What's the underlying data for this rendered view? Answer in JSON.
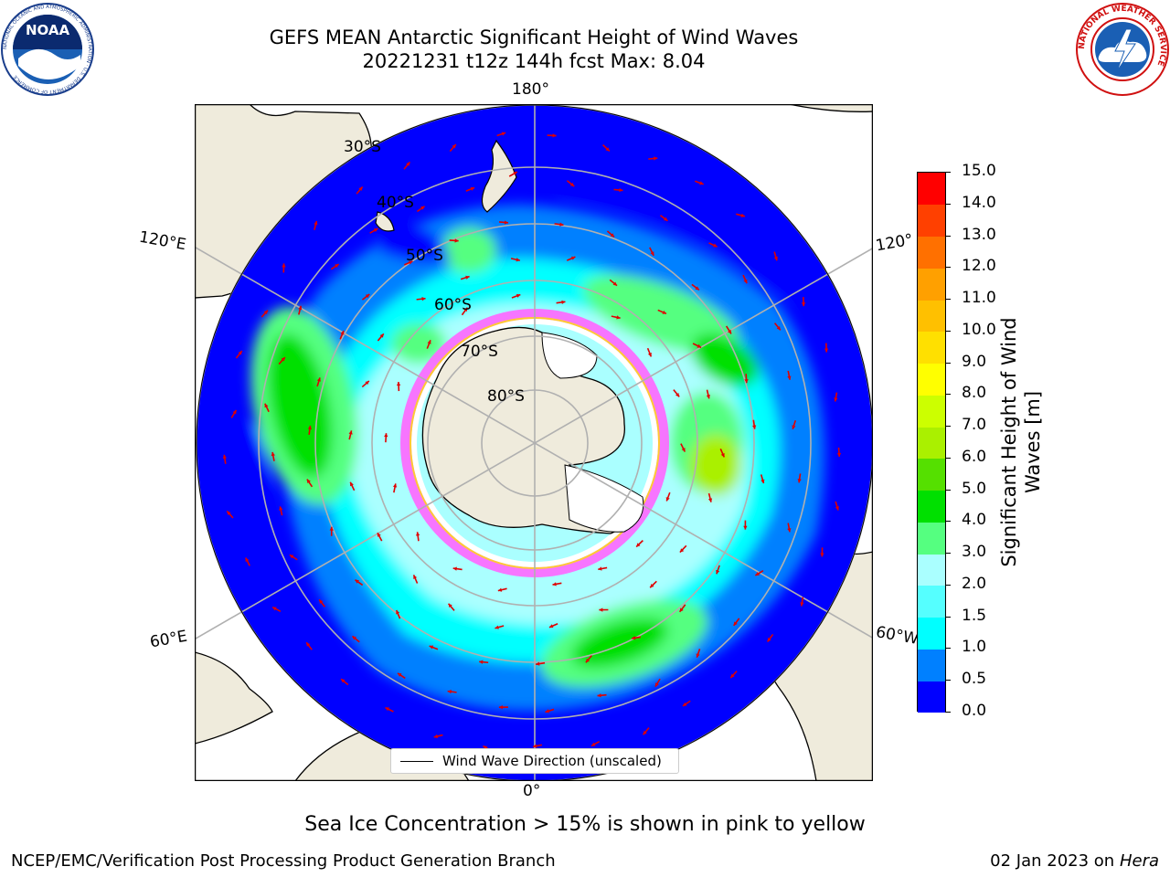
{
  "header": {
    "title_line1": "GEFS MEAN Antarctic Significant Height of Wind Waves",
    "title_line2": "20221231 t12z 144h fcst   Max: 8.04"
  },
  "logos": {
    "noaa_text": "NOAA",
    "noaa_ring_text": "NATIONAL OCEANIC AND ATMOSPHERIC ADMINISTRATION · U.S. DEPARTMENT OF COMMERCE",
    "nws_ring_text": "NATIONAL WEATHER SERVICE"
  },
  "map": {
    "projection": "south-polar-stereographic",
    "longitude_labels": {
      "top": "180°",
      "bottom": "0°",
      "left_upper": "120°E",
      "left_lower": "60°E",
      "right_upper": "120°",
      "right_lower": "60°W"
    },
    "latitude_labels": [
      "30°S",
      "40°S",
      "50°S",
      "60°S",
      "70°S",
      "80°S"
    ],
    "legend_label": "Wind Wave Direction (unscaled)",
    "colors": {
      "land": "#efebdc",
      "ice": "#ff66ff",
      "arrow": "#e00000",
      "grid": "#b0b0b0"
    }
  },
  "colorbar": {
    "title": "Significant Height of Wind Waves [m]",
    "title_line1": "Significant Height of Wind",
    "title_line2": "Waves [m]",
    "ticks": [
      "15.0",
      "14.0",
      "13.0",
      "12.0",
      "11.0",
      "10.0",
      "9.0",
      "8.0",
      "7.0",
      "6.0",
      "5.0",
      "4.0",
      "3.0",
      "2.0",
      "1.5",
      "1.0",
      "0.5",
      "0.0"
    ],
    "levels": [
      0,
      0.5,
      1.0,
      1.5,
      2.0,
      3.0,
      4.0,
      5.0,
      6.0,
      7.0,
      8.0,
      9.0,
      10.0,
      11.0,
      12.0,
      13.0,
      14.0,
      15.0
    ],
    "colors": [
      "#0000ff",
      "#0080ff",
      "#00ffff",
      "#55ffff",
      "#aaffff",
      "#55ff80",
      "#00e000",
      "#55e000",
      "#aaf000",
      "#ccff00",
      "#ffff00",
      "#ffe000",
      "#ffc000",
      "#ffa000",
      "#ff7000",
      "#ff4000",
      "#ff0000"
    ]
  },
  "footer": {
    "caption": "Sea Ice Concentration > 15% is shown in pink to yellow",
    "credit_left": "NCEP/EMC/Verification Post Processing Product Generation Branch",
    "date_text": "02 Jan 2023 on ",
    "host": "Hera"
  }
}
